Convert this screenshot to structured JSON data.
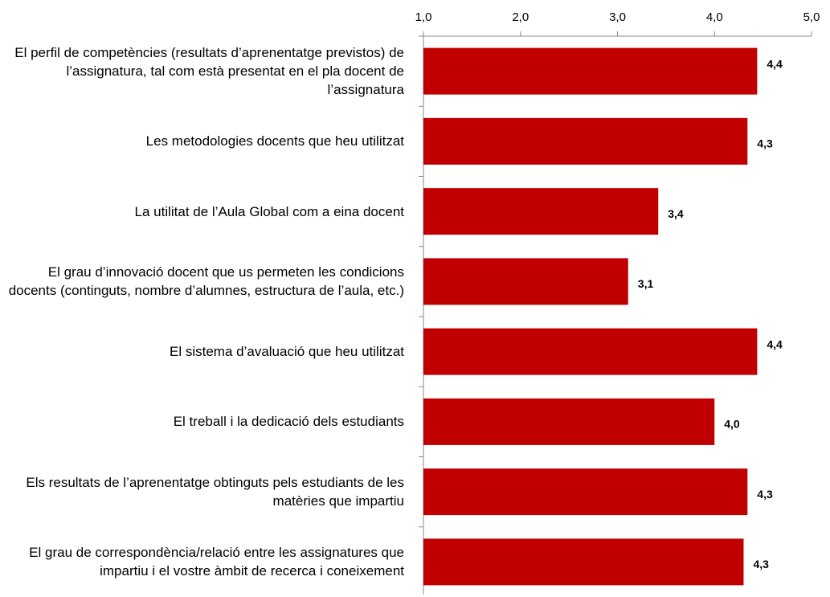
{
  "chart_data": {
    "type": "hbar",
    "categories": [
      "El perfil de competències (resultats d’aprenentatge previstos) de l’assignatura, tal com està presentat en el pla docent de l’assignatura",
      "Les metodologies docents que heu utilitzat",
      "La utilitat de l’Aula Global com a eina docent",
      "El grau d’innovació docent que us permeten les condicions docents (continguts, nombre d’alumnes, estructura de l’aula, etc.)",
      "El sistema d’avaluació que heu utilitzat",
      "El treball i la dedicació dels estudiants",
      "Els resultats de l’aprenentatge obtinguts pels estudiants de les matèries que impartiu",
      "El grau de correspondència/relació entre les assignatures que impartiu i el vostre àmbit de recerca i coneixement"
    ],
    "values": [
      4.44,
      4.34,
      3.42,
      3.11,
      4.44,
      4.0,
      4.34,
      4.3
    ],
    "value_labels": [
      "4,4",
      "4,3",
      "3,4",
      "3,1",
      "4,4",
      "4,0",
      "4,3",
      "4,3"
    ],
    "color": "#c00000",
    "xlim": [
      1,
      5
    ],
    "xticks": [
      {
        "value": 1,
        "label": "1,0"
      },
      {
        "value": 2,
        "label": "2,0"
      },
      {
        "value": 3,
        "label": "3,0"
      },
      {
        "value": 4,
        "label": "4,0"
      },
      {
        "value": 5,
        "label": "5,0"
      }
    ]
  }
}
